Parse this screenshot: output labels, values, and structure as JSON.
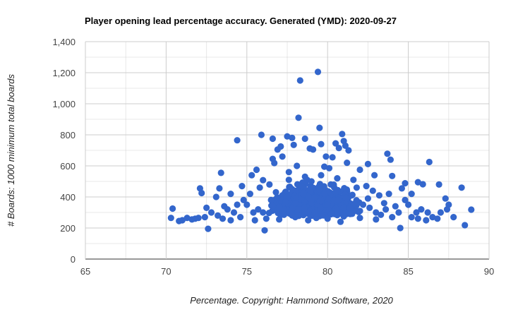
{
  "chart_data": {
    "type": "scatter",
    "title": "Player opening lead percentage accuracy. Generated (YMD): 2020-09-27",
    "xlabel": "Percentage. Copyright: Hammond Software, 2020",
    "ylabel": "# Boards: 1000 minimum total boards",
    "xlim": [
      65,
      90
    ],
    "ylim": [
      0,
      1400
    ],
    "x_ticks": [
      "65",
      "70",
      "75",
      "80",
      "85",
      "90"
    ],
    "y_ticks": [
      "0",
      "200",
      "400",
      "600",
      "800",
      "1,000",
      "1,200",
      "1,400"
    ],
    "grid": true,
    "legend": "none",
    "series": [
      {
        "color": "#3366cc",
        "points": [
          [
            79.4,
            1205
          ],
          [
            78.3,
            1150
          ],
          [
            78.2,
            910
          ],
          [
            79.5,
            845
          ],
          [
            80.9,
            805
          ],
          [
            75.9,
            800
          ],
          [
            77.5,
            790
          ],
          [
            77.8,
            780
          ],
          [
            78.6,
            775
          ],
          [
            74.4,
            765
          ],
          [
            76.6,
            775
          ],
          [
            81.0,
            760
          ],
          [
            77.9,
            735
          ],
          [
            80.5,
            745
          ],
          [
            79.6,
            740
          ],
          [
            77.1,
            725
          ],
          [
            76.9,
            705
          ],
          [
            81.3,
            700
          ],
          [
            79.1,
            705
          ],
          [
            81.1,
            730
          ],
          [
            80.7,
            715
          ],
          [
            78.9,
            712
          ],
          [
            83.7,
            678
          ],
          [
            86.3,
            625
          ],
          [
            83.9,
            640
          ],
          [
            79.9,
            660
          ],
          [
            80.3,
            655
          ],
          [
            77.2,
            660
          ],
          [
            76.6,
            645
          ],
          [
            82.5,
            612
          ],
          [
            73.4,
            555
          ],
          [
            72.1,
            455
          ],
          [
            72.2,
            425
          ],
          [
            70.4,
            325
          ],
          [
            70.3,
            265
          ],
          [
            70.8,
            245
          ],
          [
            72.6,
            195
          ],
          [
            73.3,
            455
          ],
          [
            73.1,
            400
          ],
          [
            71.3,
            265
          ],
          [
            71.6,
            255
          ],
          [
            72.0,
            265
          ],
          [
            86.9,
            480
          ],
          [
            88.3,
            460
          ],
          [
            87.3,
            390
          ],
          [
            87.5,
            350
          ],
          [
            88.9,
            318
          ],
          [
            88.5,
            218
          ],
          [
            87.8,
            270
          ],
          [
            85.6,
            495
          ],
          [
            85.9,
            482
          ],
          [
            84.8,
            488
          ],
          [
            85.2,
            420
          ],
          [
            84.0,
            535
          ],
          [
            84.6,
            455
          ],
          [
            75.6,
            575
          ],
          [
            76.7,
            618
          ],
          [
            78.1,
            600
          ],
          [
            82.0,
            575
          ],
          [
            75.3,
            540
          ],
          [
            82.9,
            540
          ],
          [
            81.2,
            620
          ],
          [
            77.6,
            560
          ],
          [
            76.0,
            508
          ],
          [
            79.8,
            595
          ],
          [
            80.1,
            585
          ],
          [
            74.7,
            470
          ],
          [
            74.0,
            420
          ],
          [
            85.0,
            350
          ],
          [
            85.5,
            300
          ],
          [
            86.1,
            250
          ],
          [
            74.2,
            300
          ],
          [
            76.1,
            185
          ],
          [
            77.0,
            255
          ],
          [
            78.0,
            270
          ],
          [
            80.0,
            260
          ],
          [
            81.0,
            275
          ],
          [
            82.0,
            265
          ],
          [
            83.0,
            255
          ],
          [
            84.0,
            270
          ],
          [
            84.5,
            200
          ],
          [
            75.0,
            350
          ],
          [
            76.5,
            380
          ],
          [
            77.5,
            400
          ],
          [
            78.5,
            420
          ],
          [
            79.5,
            450
          ],
          [
            80.5,
            430
          ],
          [
            81.5,
            410
          ],
          [
            82.5,
            390
          ],
          [
            83.5,
            360
          ],
          [
            76.0,
            300
          ],
          [
            77.0,
            330
          ],
          [
            78.0,
            360
          ],
          [
            79.0,
            380
          ],
          [
            80.0,
            350
          ],
          [
            81.0,
            330
          ],
          [
            82.0,
            310
          ],
          [
            83.0,
            300
          ],
          [
            75.5,
            250
          ],
          [
            78.8,
            250
          ],
          [
            80.8,
            240
          ],
          [
            79.2,
            300
          ],
          [
            78.4,
            470
          ],
          [
            79.0,
            500
          ],
          [
            80.2,
            480
          ],
          [
            77.8,
            450
          ],
          [
            81.8,
            460
          ],
          [
            76.8,
            430
          ],
          [
            82.8,
            440
          ],
          [
            75.8,
            460
          ],
          [
            83.8,
            420
          ],
          [
            74.8,
            380
          ],
          [
            84.8,
            380
          ],
          [
            73.8,
            320
          ],
          [
            85.8,
            320
          ],
          [
            73.5,
            260
          ],
          [
            86.5,
            270
          ],
          [
            72.8,
            300
          ],
          [
            87.0,
            300
          ],
          [
            72.5,
            330
          ],
          [
            79.6,
            540
          ],
          [
            78.6,
            530
          ],
          [
            80.6,
            520
          ],
          [
            77.6,
            510
          ],
          [
            81.6,
            510
          ],
          [
            76.4,
            480
          ],
          [
            82.4,
            470
          ],
          [
            75.2,
            420
          ],
          [
            83.2,
            410
          ],
          [
            74.4,
            350
          ],
          [
            84.2,
            340
          ],
          [
            73.2,
            280
          ],
          [
            85.2,
            270
          ],
          [
            86.8,
            260
          ],
          [
            71.8,
            260
          ],
          [
            77.3,
            285
          ],
          [
            79.3,
            265
          ],
          [
            81.4,
            290
          ],
          [
            83.3,
            285
          ],
          [
            75.7,
            320
          ],
          [
            80.4,
            380
          ],
          [
            78.2,
            320
          ],
          [
            82.2,
            350
          ],
          [
            76.2,
            260
          ],
          [
            84.4,
            300
          ],
          [
            74.6,
            270
          ],
          [
            79.8,
            420
          ],
          [
            77.4,
            370
          ],
          [
            81.2,
            390
          ],
          [
            78.8,
            400
          ],
          [
            80.6,
            310
          ],
          [
            76.6,
            340
          ],
          [
            82.6,
            330
          ],
          [
            75.4,
            300
          ],
          [
            83.6,
            320
          ],
          [
            74.0,
            250
          ],
          [
            85.6,
            260
          ],
          [
            86.2,
            300
          ],
          [
            87.4,
            320
          ],
          [
            73.6,
            340
          ],
          [
            72.4,
            270
          ],
          [
            71.0,
            250
          ]
        ]
      }
    ]
  }
}
